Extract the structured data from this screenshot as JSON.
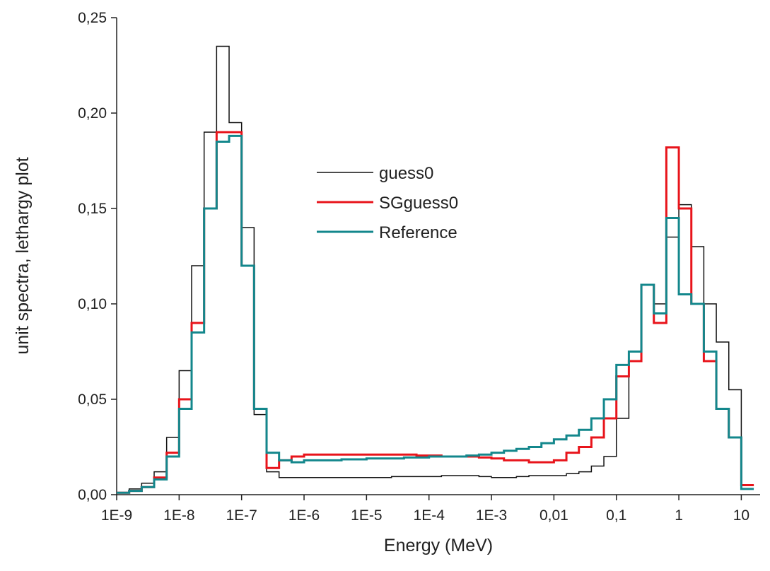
{
  "chart_data": {
    "type": "step",
    "x_label": "Energy (MeV)",
    "y_label": "unit spectra, lethargy plot",
    "x_scale": "log",
    "xlim": [
      1e-09,
      20
    ],
    "ylim": [
      0,
      0.25
    ],
    "xticks": [
      {
        "value": 1e-09,
        "label": "1E-9"
      },
      {
        "value": 1e-08,
        "label": "1E-8"
      },
      {
        "value": 1e-07,
        "label": "1E-7"
      },
      {
        "value": 1e-06,
        "label": "1E-6"
      },
      {
        "value": 1e-05,
        "label": "1E-5"
      },
      {
        "value": 0.0001,
        "label": "1E-4"
      },
      {
        "value": 0.001,
        "label": "1E-3"
      },
      {
        "value": 0.01,
        "label": "0,01"
      },
      {
        "value": 0.1,
        "label": "0,1"
      },
      1,
      10
    ],
    "yticks": [
      {
        "value": 0,
        "label": "0,00"
      },
      {
        "value": 0.05,
        "label": "0,05"
      },
      {
        "value": 0.1,
        "label": "0,10"
      },
      {
        "value": 0.15,
        "label": "0,15"
      },
      {
        "value": 0.2,
        "label": "0,20"
      },
      {
        "value": 0.25,
        "label": "0,25"
      }
    ],
    "x": [
      1e-09,
      1.585e-09,
      2.512e-09,
      3.981e-09,
      6.31e-09,
      1e-08,
      1.585e-08,
      2.512e-08,
      3.981e-08,
      6.31e-08,
      1e-07,
      1.585e-07,
      2.512e-07,
      3.981e-07,
      6.31e-07,
      1e-06,
      1.585e-06,
      2.512e-06,
      3.981e-06,
      6.31e-06,
      1e-05,
      1.585e-05,
      2.512e-05,
      3.981e-05,
      6.31e-05,
      0.0001,
      0.0001585,
      0.0002512,
      0.0003981,
      0.000631,
      0.001,
      0.001585,
      0.002512,
      0.003981,
      0.00631,
      0.01,
      0.01585,
      0.02512,
      0.03981,
      0.0631,
      0.1,
      0.1585,
      0.2512,
      0.3981,
      0.631,
      1,
      1.585,
      2.512,
      3.981,
      6.31,
      10
    ],
    "series": [
      {
        "name": "guess0",
        "color": "#111111",
        "width": 1.5,
        "values": [
          0.001,
          0.003,
          0.006,
          0.012,
          0.03,
          0.065,
          0.12,
          0.19,
          0.235,
          0.195,
          0.14,
          0.042,
          0.012,
          0.009,
          0.009,
          0.009,
          0.009,
          0.009,
          0.009,
          0.009,
          0.009,
          0.009,
          0.0095,
          0.0095,
          0.0095,
          0.0095,
          0.01,
          0.01,
          0.01,
          0.0095,
          0.009,
          0.009,
          0.0095,
          0.01,
          0.01,
          0.01,
          0.011,
          0.012,
          0.015,
          0.02,
          0.04,
          0.07,
          0.11,
          0.1,
          0.135,
          0.152,
          0.13,
          0.1,
          0.08,
          0.055,
          0.005
        ]
      },
      {
        "name": "SGguess0",
        "color": "#e8141b",
        "width": 3,
        "values": [
          0.001,
          0.002,
          0.004,
          0.009,
          0.022,
          0.05,
          0.09,
          0.15,
          0.19,
          0.19,
          0.12,
          0.045,
          0.014,
          0.018,
          0.02,
          0.021,
          0.021,
          0.021,
          0.021,
          0.021,
          0.021,
          0.021,
          0.021,
          0.021,
          0.0205,
          0.0205,
          0.02,
          0.02,
          0.02,
          0.0195,
          0.019,
          0.018,
          0.018,
          0.017,
          0.017,
          0.018,
          0.022,
          0.025,
          0.03,
          0.04,
          0.062,
          0.07,
          0.11,
          0.09,
          0.182,
          0.15,
          0.1,
          0.07,
          0.045,
          0.03,
          0.005
        ]
      },
      {
        "name": "Reference",
        "color": "#13878c",
        "width": 3,
        "values": [
          0.001,
          0.002,
          0.004,
          0.008,
          0.02,
          0.045,
          0.085,
          0.15,
          0.185,
          0.188,
          0.12,
          0.045,
          0.022,
          0.018,
          0.017,
          0.018,
          0.018,
          0.018,
          0.0185,
          0.0185,
          0.019,
          0.019,
          0.019,
          0.0195,
          0.0195,
          0.02,
          0.02,
          0.02,
          0.0205,
          0.021,
          0.022,
          0.023,
          0.024,
          0.025,
          0.027,
          0.029,
          0.031,
          0.034,
          0.04,
          0.05,
          0.068,
          0.075,
          0.11,
          0.095,
          0.145,
          0.105,
          0.1,
          0.075,
          0.045,
          0.03,
          0.003
        ]
      }
    ]
  }
}
